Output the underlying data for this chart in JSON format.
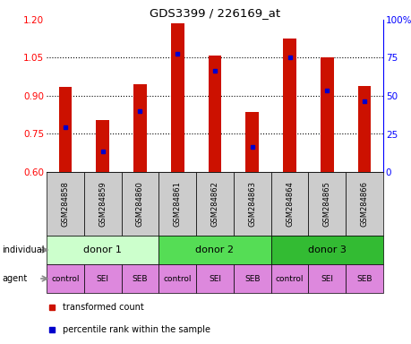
{
  "title": "GDS3399 / 226169_at",
  "samples": [
    "GSM284858",
    "GSM284859",
    "GSM284860",
    "GSM284861",
    "GSM284862",
    "GSM284863",
    "GSM284864",
    "GSM284865",
    "GSM284866"
  ],
  "bar_values": [
    0.935,
    0.805,
    0.945,
    1.185,
    1.06,
    0.835,
    1.125,
    1.05,
    0.94
  ],
  "percentile_values": [
    0.775,
    0.68,
    0.84,
    1.065,
    1.0,
    0.7,
    1.05,
    0.92,
    0.88
  ],
  "ylim_left": [
    0.6,
    1.2
  ],
  "ylim_right": [
    0,
    100
  ],
  "yticks_left": [
    0.6,
    0.75,
    0.9,
    1.05,
    1.2
  ],
  "yticks_right": [
    0,
    25,
    50,
    75,
    100
  ],
  "ytick_labels_right": [
    "0",
    "25",
    "50",
    "75",
    "100%"
  ],
  "donors": [
    {
      "label": "donor 1",
      "start": 0,
      "end": 3,
      "color": "#ccffcc"
    },
    {
      "label": "donor 2",
      "start": 3,
      "end": 6,
      "color": "#55dd55"
    },
    {
      "label": "donor 3",
      "start": 6,
      "end": 9,
      "color": "#33bb33"
    }
  ],
  "agents": [
    "control",
    "SEI",
    "SEB",
    "control",
    "SEI",
    "SEB",
    "control",
    "SEI",
    "SEB"
  ],
  "agent_color": "#dd88dd",
  "bar_color": "#cc1100",
  "percentile_color": "#0000cc",
  "background_color": "#ffffff",
  "sample_bg_color": "#cccccc",
  "legend_red_label": "transformed count",
  "legend_blue_label": "percentile rank within the sample",
  "fig_width": 4.6,
  "fig_height": 3.84,
  "dpi": 100
}
